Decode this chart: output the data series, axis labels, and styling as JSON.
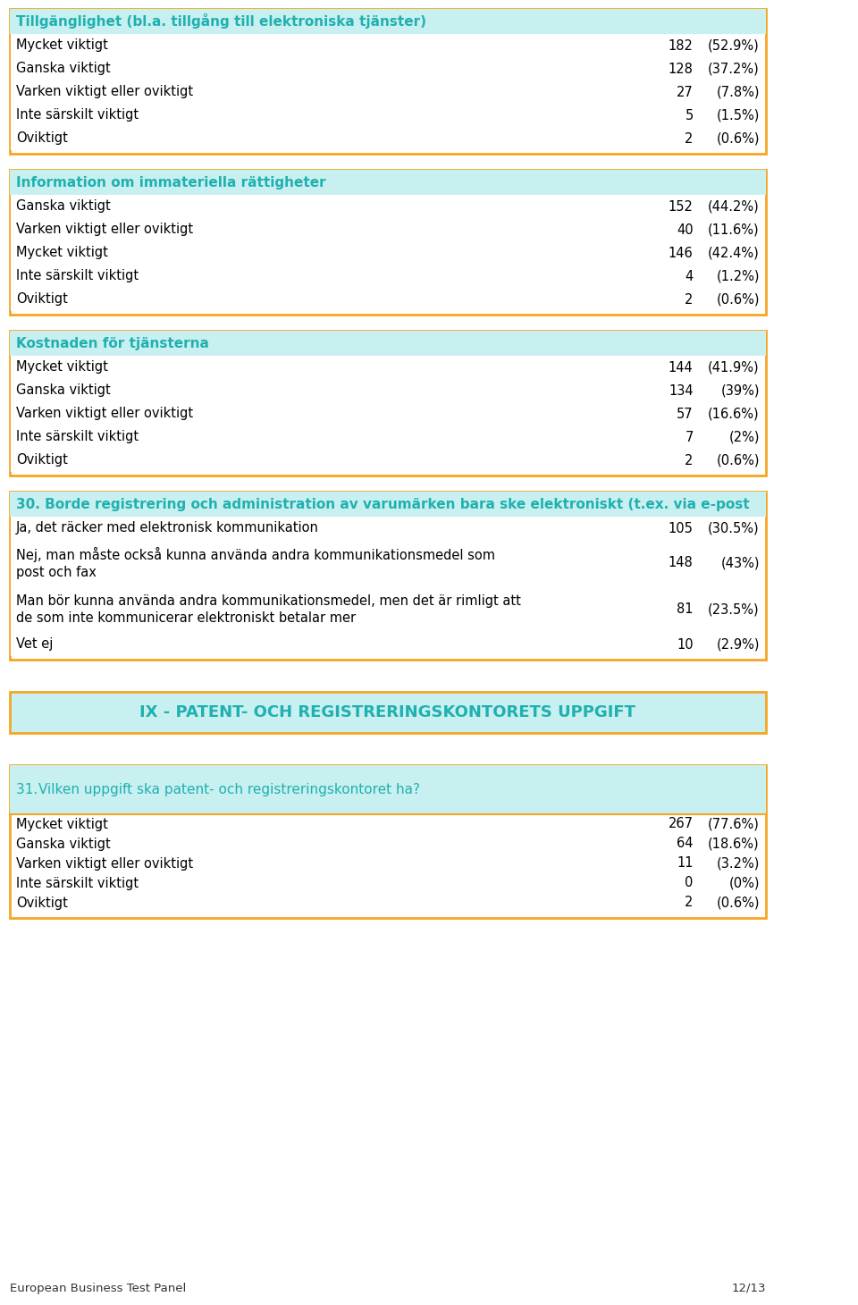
{
  "page_bg": "#ffffff",
  "border_color": "#F5A623",
  "header_bg": "#C8F0F0",
  "header_text_color": "#20B0B0",
  "body_text_color": "#000000",
  "num_color": "#000000",
  "section_bg": "#E0F8F8",
  "footer_left": "European Business Test Panel",
  "footer_right": "12/13",
  "sections": [
    {
      "header": "Tillgänglighet (bl.a. tillgång till elektroniska tjänster)",
      "rows": [
        {
          "label": "Mycket viktigt",
          "value": "182",
          "pct": "(52.9%)"
        },
        {
          "label": "Ganska viktigt",
          "value": "128",
          "pct": "(37.2%)"
        },
        {
          "label": "Varken viktigt eller oviktigt",
          "value": "27",
          "pct": "(7.8%)"
        },
        {
          "label": "Inte särskilt viktigt",
          "value": "5",
          "pct": "(1.5%)"
        },
        {
          "label": "Oviktigt",
          "value": "2",
          "pct": "(0.6%)"
        }
      ]
    },
    {
      "header": "Information om immateriella rättigheter",
      "rows": [
        {
          "label": "Ganska viktigt",
          "value": "152",
          "pct": "(44.2%)"
        },
        {
          "label": "Varken viktigt eller oviktigt",
          "value": "40",
          "pct": "(11.6%)"
        },
        {
          "label": "Mycket viktigt",
          "value": "146",
          "pct": "(42.4%)"
        },
        {
          "label": "Inte särskilt viktigt",
          "value": "4",
          "pct": "(1.2%)"
        },
        {
          "label": "Oviktigt",
          "value": "2",
          "pct": "(0.6%)"
        }
      ]
    },
    {
      "header": "Kostnaden för tjänsterna",
      "rows": [
        {
          "label": "Mycket viktigt",
          "value": "144",
          "pct": "(41.9%)"
        },
        {
          "label": "Ganska viktigt",
          "value": "134",
          "pct": "(39%)"
        },
        {
          "label": "Varken viktigt eller oviktigt",
          "value": "57",
          "pct": "(16.6%)"
        },
        {
          "label": "Inte särskilt viktigt",
          "value": "7",
          "pct": "(2%)"
        },
        {
          "label": "Oviktigt",
          "value": "2",
          "pct": "(0.6%)"
        }
      ]
    },
    {
      "header": "30. Borde registrering och administration av varumärken bara ske elektroniskt (t.ex. via e-post",
      "rows": [
        {
          "label": "Ja, det räcker med elektronisk kommunikation",
          "value": "105",
          "pct": "(30.5%)"
        },
        {
          "label": "Nej, man måste också kunna använda andra kommunikationsmedel som\npost och fax",
          "value": "148",
          "pct": "(43%)"
        },
        {
          "label": "Man bör kunna använda andra kommunikationsmedel, men det är rimligt att\nde som inte kommunicerar elektroniskt betalar mer",
          "value": "81",
          "pct": "(23.5%)"
        },
        {
          "label": "Vet ej",
          "value": "10",
          "pct": "(2.9%)"
        }
      ]
    }
  ],
  "section_banner": {
    "text": "IX - PATENT- OCH REGISTRERINGSKONTORETS UPPGIFT",
    "bg": "#C8F0F0",
    "text_color": "#20B0B0"
  },
  "question31": {
    "header": "31. Vilken uppgift ska patent- och registreringskontoret ha?",
    "rows": [
      {
        "label": "Mycket viktigt",
        "value": "267",
        "pct": "(77.6%)"
      },
      {
        "label": "Ganska viktigt",
        "value": "64",
        "pct": "(18.6%)"
      },
      {
        "label": "Varken viktigt eller oviktigt",
        "value": "11",
        "pct": "(3.2%)"
      },
      {
        "label": "Inte särskilt viktigt",
        "value": "0",
        "pct": "(0%)"
      },
      {
        "label": "Oviktigt",
        "value": "2",
        "pct": "(0.6%)"
      }
    ]
  }
}
